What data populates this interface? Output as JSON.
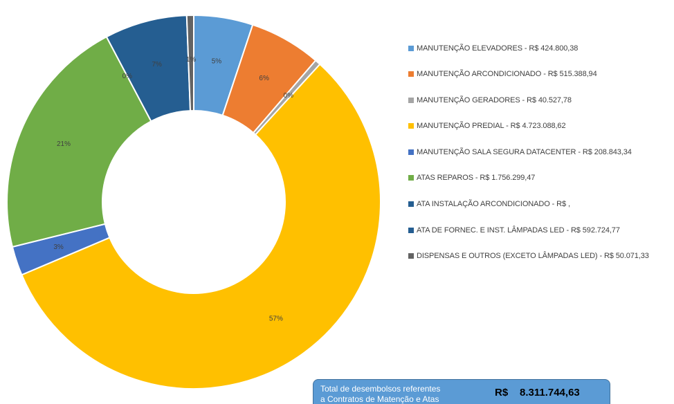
{
  "chart_data": {
    "type": "pie",
    "style": "donut",
    "legend_position": "right",
    "start_angle_deg": 0,
    "slices": [
      {
        "name": "MANUTENÇÃO ELEVADORES - R$ 424.800,38",
        "value": 424800.38,
        "label": "5%",
        "color": "#5b9bd5"
      },
      {
        "name": "MANUTENÇÃO ARCONDICIONADO - R$ 515.388,94",
        "value": 515388.94,
        "label": "6%",
        "color": "#ed7d31"
      },
      {
        "name": "MANUTENÇÃO GERADORES - R$ 40.527,78",
        "value": 40527.78,
        "label": "0%",
        "color": "#a5a5a5"
      },
      {
        "name": "MANUTENÇÃO PREDIAL - R$ 4.723.088,62",
        "value": 4723088.62,
        "label": "57%",
        "color": "#ffc000"
      },
      {
        "name": "MANUTENÇÃO SALA SEGURA DATACENTER - R$ 208.843,34",
        "value": 208843.34,
        "label": "3%",
        "color": "#4472c4"
      },
      {
        "name": "ATAS REPAROS - R$ 1.756.299,47",
        "value": 1756299.47,
        "label": "21%",
        "color": "#70ad47"
      },
      {
        "name": "ATA INSTALAÇÃO ARCONDICIONADO - R$ ,",
        "value": 0,
        "label": "0%",
        "color": "#255e91"
      },
      {
        "name": "ATA DE FORNEC. E INST. LÂMPADAS LED - R$ 592.724,77",
        "value": 592724.77,
        "label": "7%",
        "color": "#255e91"
      },
      {
        "name": "DISPENSAS E OUTROS (EXCETO LÂMPADAS LED) - R$ 50.071,33",
        "value": 50071.33,
        "label": "1%",
        "color": "#636363"
      }
    ]
  },
  "total_box": {
    "text_line1": "Total de desembolsos referentes",
    "text_line2": "a Contratos de Matenção e Atas",
    "currency": "R$",
    "value": "8.311.744,63",
    "background": "#5b9bd5"
  }
}
